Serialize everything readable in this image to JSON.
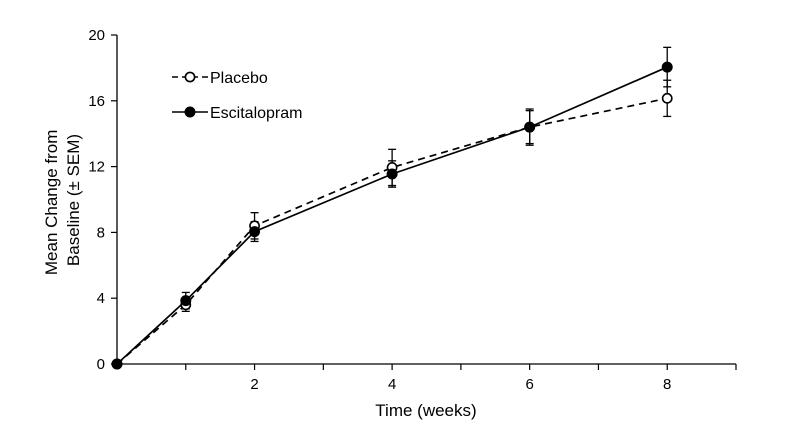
{
  "chart_data": {
    "type": "line",
    "title": "",
    "xlabel": "Time (weeks)",
    "ylabel_lines": [
      "Mean Change from",
      "Baseline (± SEM)"
    ],
    "xlim": [
      0,
      9
    ],
    "ylim": [
      0,
      20
    ],
    "x_ticks": [
      1,
      2,
      3,
      4,
      5,
      6,
      7,
      8,
      9
    ],
    "x_tick_labels": [
      {
        "value": 2,
        "label": "2"
      },
      {
        "value": 4,
        "label": "4"
      },
      {
        "value": 6,
        "label": "6"
      },
      {
        "value": 8,
        "label": "8"
      }
    ],
    "y_ticks": [
      {
        "value": 0,
        "label": "0"
      },
      {
        "value": 4,
        "label": "4"
      },
      {
        "value": 8,
        "label": "8"
      },
      {
        "value": 12,
        "label": "12"
      },
      {
        "value": 16,
        "label": "16"
      },
      {
        "value": 20,
        "label": "20"
      }
    ],
    "grid": false,
    "legend_position": "top-left",
    "series": [
      {
        "name": "Placebo",
        "style": "dashed",
        "marker": "open-circle",
        "x": [
          0,
          1,
          2,
          4,
          6,
          8
        ],
        "y": [
          0,
          3.6,
          8.4,
          11.95,
          14.4,
          16.15
        ],
        "err": [
          0,
          0.4,
          0.8,
          1.1,
          1.1,
          1.1
        ]
      },
      {
        "name": "Escitalopram",
        "style": "solid",
        "marker": "filled-circle",
        "x": [
          0,
          1,
          2,
          4,
          6,
          8
        ],
        "y": [
          0,
          3.85,
          8.05,
          11.55,
          14.4,
          18.05
        ],
        "err": [
          0,
          0.5,
          0.6,
          0.8,
          1.0,
          1.2
        ]
      }
    ]
  }
}
